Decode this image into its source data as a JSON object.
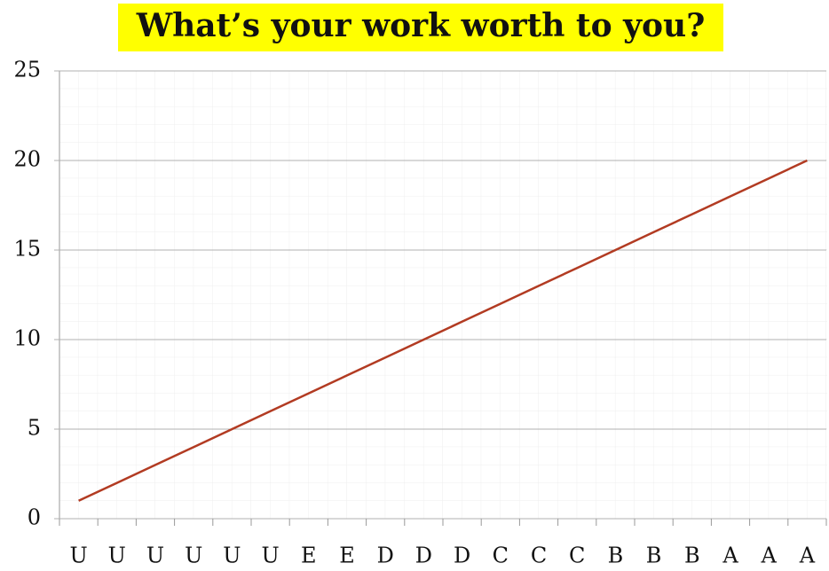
{
  "chart_data": {
    "type": "line",
    "title": "What’s your work worth to you?",
    "categories": [
      "U",
      "U",
      "U",
      "U",
      "U",
      "U",
      "E",
      "E",
      "D",
      "D",
      "D",
      "C",
      "C",
      "C",
      "B",
      "B",
      "B",
      "A",
      "A",
      "A"
    ],
    "values": [
      1,
      2,
      3,
      4,
      5,
      6,
      7,
      8,
      9,
      10,
      11,
      12,
      13,
      14,
      15,
      16,
      17,
      18,
      19,
      20
    ],
    "color": "#b23b22",
    "ylim": [
      0,
      25
    ],
    "yticks": [
      0,
      5,
      10,
      15,
      20,
      25
    ],
    "grid": true
  }
}
